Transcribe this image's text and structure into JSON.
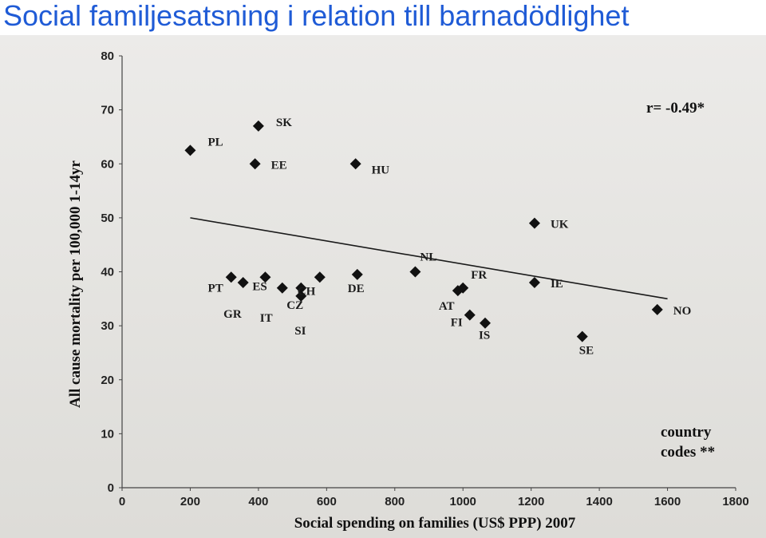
{
  "slide": {
    "title": "Social familjesatsning i relation till barnadödlighet"
  },
  "chart_data": {
    "type": "scatter",
    "xlabel": "Social spending on families (US$ PPP) 2007",
    "ylabel": "All cause mortality per 100,000 1-14yr",
    "xlim": [
      0,
      1800
    ],
    "ylim": [
      0,
      80
    ],
    "x_ticks": [
      "0",
      "200",
      "400",
      "600",
      "800",
      "1000",
      "1200",
      "1400",
      "1600",
      "1800"
    ],
    "y_ticks": [
      "0",
      "10",
      "20",
      "30",
      "40",
      "50",
      "60",
      "70",
      "80"
    ],
    "correlation_label": "r= -0.49*",
    "note_lines": [
      "country",
      "codes **"
    ],
    "trendline": {
      "x": [
        200,
        1600
      ],
      "y": [
        50,
        35
      ]
    },
    "points": [
      {
        "code": "PL",
        "x": 200,
        "y": 62.5
      },
      {
        "code": "SK",
        "x": 400,
        "y": 67
      },
      {
        "code": "EE",
        "x": 390,
        "y": 60
      },
      {
        "code": "HU",
        "x": 685,
        "y": 60
      },
      {
        "code": "PT",
        "x": 320,
        "y": 39
      },
      {
        "code": "GR",
        "x": 355,
        "y": 38
      },
      {
        "code": "ES",
        "x": 420,
        "y": 39
      },
      {
        "code": "IT",
        "x": 470,
        "y": 37
      },
      {
        "code": "CZ",
        "x": 525,
        "y": 37
      },
      {
        "code": "SI",
        "x": 525,
        "y": 35.5
      },
      {
        "code": "CH",
        "x": 580,
        "y": 39
      },
      {
        "code": "DE",
        "x": 690,
        "y": 39.5
      },
      {
        "code": "NL",
        "x": 860,
        "y": 40
      },
      {
        "code": "FR",
        "x": 1000,
        "y": 37
      },
      {
        "code": "AT",
        "x": 985,
        "y": 36.5
      },
      {
        "code": "FI",
        "x": 1020,
        "y": 32
      },
      {
        "code": "IS",
        "x": 1065,
        "y": 30.5
      },
      {
        "code": "UK",
        "x": 1210,
        "y": 49
      },
      {
        "code": "IE",
        "x": 1210,
        "y": 38
      },
      {
        "code": "SE",
        "x": 1350,
        "y": 28
      },
      {
        "code": "NO",
        "x": 1570,
        "y": 33
      }
    ]
  }
}
